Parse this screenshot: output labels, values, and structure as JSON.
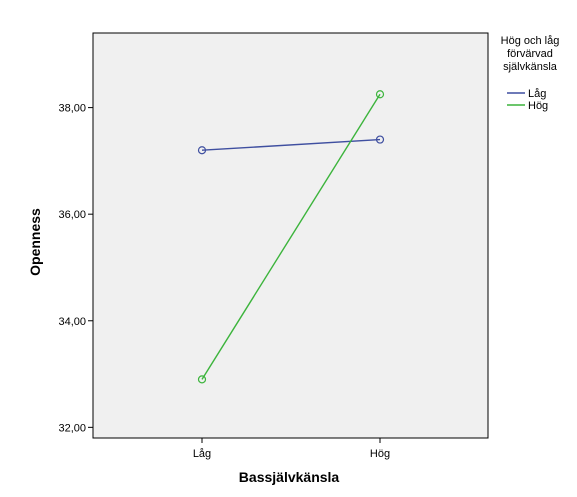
{
  "chart_data": {
    "type": "line",
    "categories": [
      "Låg",
      "Hög"
    ],
    "xlabel": "Bassjälvkänsla",
    "ylabel": "Openness",
    "ylim": [
      31.8,
      39.4
    ],
    "yticks": [
      "32,00",
      "34,00",
      "36,00",
      "38,00"
    ],
    "ytick_values": [
      32,
      34,
      36,
      38
    ],
    "grid": false,
    "legend": {
      "title_lines": [
        "Hög och låg",
        "förvärvad",
        "självkänsla"
      ],
      "placement": "right"
    },
    "series": [
      {
        "name": "Låg",
        "values": [
          37.2,
          37.4
        ],
        "color": "#3f4fa0"
      },
      {
        "name": "Hög",
        "values": [
          32.9,
          38.25
        ],
        "color": "#3cb43c"
      }
    ]
  },
  "colors": {
    "plot_background": "#f0f0f0",
    "frame": "#000000"
  }
}
